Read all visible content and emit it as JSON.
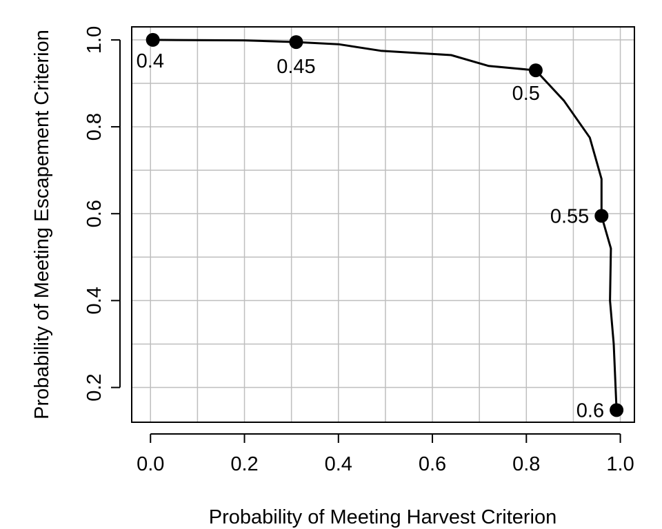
{
  "chart_data": {
    "type": "line",
    "xlabel": "Probability of Meeting Harvest Criterion",
    "ylabel": "Probability of Meeting Escapement Criterion",
    "xlim": [
      -0.04,
      1.03
    ],
    "ylim": [
      0.12,
      1.03
    ],
    "xticks": [
      0.0,
      0.2,
      0.4,
      0.6,
      0.8,
      1.0
    ],
    "xtick_labels": [
      "0.0",
      "0.2",
      "0.4",
      "0.6",
      "0.8",
      "1.0"
    ],
    "yticks": [
      0.2,
      0.4,
      0.6,
      0.8,
      1.0
    ],
    "ytick_labels": [
      "0.2",
      "0.4",
      "0.6",
      "0.8",
      "1.0"
    ],
    "x_gridlines": [
      0.0,
      0.1,
      0.2,
      0.3,
      0.4,
      0.5,
      0.6,
      0.7,
      0.8,
      0.9,
      1.0
    ],
    "y_gridlines": [
      0.2,
      0.3,
      0.4,
      0.5,
      0.6,
      0.7,
      0.8,
      0.9,
      1.0
    ],
    "grid": true,
    "line_color": "#000000",
    "grid_color": "#bebebe",
    "line": [
      {
        "x": 0.005,
        "y": 1.0
      },
      {
        "x": 0.2,
        "y": 0.999
      },
      {
        "x": 0.31,
        "y": 0.995
      },
      {
        "x": 0.4,
        "y": 0.99
      },
      {
        "x": 0.49,
        "y": 0.975
      },
      {
        "x": 0.64,
        "y": 0.965
      },
      {
        "x": 0.72,
        "y": 0.94
      },
      {
        "x": 0.82,
        "y": 0.93
      },
      {
        "x": 0.88,
        "y": 0.86
      },
      {
        "x": 0.935,
        "y": 0.775
      },
      {
        "x": 0.96,
        "y": 0.68
      },
      {
        "x": 0.96,
        "y": 0.595
      },
      {
        "x": 0.98,
        "y": 0.52
      },
      {
        "x": 0.978,
        "y": 0.4
      },
      {
        "x": 0.986,
        "y": 0.3
      },
      {
        "x": 0.99,
        "y": 0.2
      },
      {
        "x": 0.992,
        "y": 0.148
      }
    ],
    "labeled_points": [
      {
        "x": 0.005,
        "y": 1.0,
        "label": "0.4",
        "label_pos": "below-right"
      },
      {
        "x": 0.31,
        "y": 0.995,
        "label": "0.45",
        "label_pos": "below"
      },
      {
        "x": 0.82,
        "y": 0.93,
        "label": "0.5",
        "label_pos": "below-left"
      },
      {
        "x": 0.96,
        "y": 0.595,
        "label": "0.55",
        "label_pos": "left"
      },
      {
        "x": 0.992,
        "y": 0.148,
        "label": "0.6",
        "label_pos": "left"
      }
    ]
  }
}
